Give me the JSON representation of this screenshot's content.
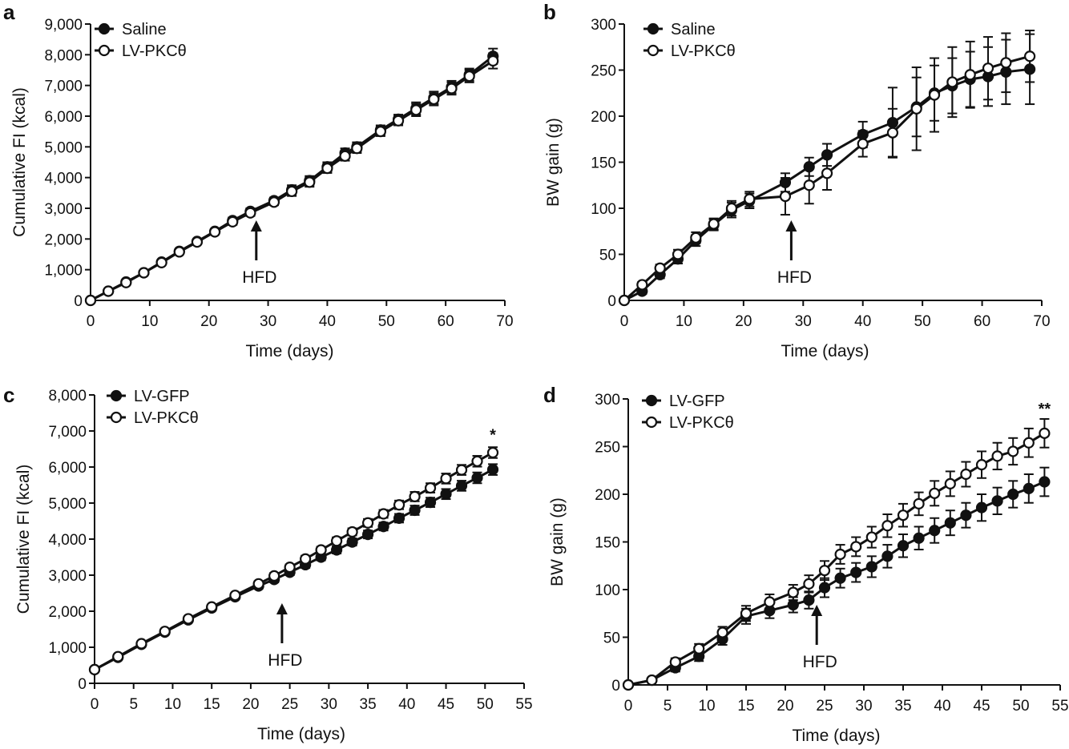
{
  "chart_data": [
    {
      "panel": "a",
      "type": "line",
      "xlabel": "Time (days)",
      "ylabel": "Cumulative FI (kcal)",
      "xlim": [
        0,
        70
      ],
      "ylim": [
        0,
        9000
      ],
      "xticks": [
        0,
        10,
        20,
        30,
        40,
        50,
        60,
        70
      ],
      "yticks": [
        0,
        1000,
        2000,
        3000,
        4000,
        5000,
        6000,
        7000,
        8000,
        9000
      ],
      "ytick_labels": [
        "0",
        "1,000",
        "2,000",
        "3,000",
        "4,000",
        "5,000",
        "6,000",
        "7,000",
        "8,000",
        "9,000"
      ],
      "annotation": {
        "text": "HFD",
        "x": 28
      },
      "significance": "",
      "legend_position": "top-left",
      "series": [
        {
          "name": "Saline",
          "marker": "filled",
          "x": [
            0,
            3,
            6,
            9,
            12,
            15,
            18,
            21,
            24,
            27,
            31,
            34,
            37,
            40,
            43,
            45,
            49,
            52,
            55,
            58,
            61,
            64,
            68
          ],
          "y": [
            0,
            300,
            600,
            900,
            1250,
            1600,
            1920,
            2250,
            2600,
            2900,
            3250,
            3600,
            3900,
            4350,
            4800,
            5000,
            5550,
            5900,
            6250,
            6600,
            6950,
            7350,
            7950
          ],
          "err": [
            0,
            0,
            0,
            0,
            0,
            0,
            0,
            0,
            100,
            100,
            100,
            150,
            150,
            150,
            150,
            150,
            150,
            150,
            200,
            200,
            200,
            200,
            250
          ]
        },
        {
          "name": "LV-PKCθ",
          "marker": "open",
          "x": [
            0,
            3,
            6,
            9,
            12,
            15,
            18,
            21,
            24,
            27,
            31,
            34,
            37,
            40,
            43,
            45,
            49,
            52,
            55,
            58,
            61,
            64,
            68
          ],
          "y": [
            0,
            300,
            580,
            900,
            1230,
            1580,
            1900,
            2230,
            2560,
            2850,
            3200,
            3550,
            3850,
            4300,
            4700,
            4950,
            5500,
            5850,
            6200,
            6550,
            6900,
            7300,
            7800
          ],
          "err": [
            0,
            0,
            0,
            0,
            0,
            0,
            0,
            0,
            100,
            100,
            100,
            150,
            150,
            150,
            150,
            150,
            150,
            150,
            200,
            200,
            200,
            200,
            250
          ]
        }
      ]
    },
    {
      "panel": "b",
      "type": "line",
      "xlabel": "Time (days)",
      "ylabel": "BW gain (g)",
      "xlim": [
        0,
        70
      ],
      "ylim": [
        0,
        300
      ],
      "xticks": [
        0,
        10,
        20,
        30,
        40,
        50,
        60,
        70
      ],
      "yticks": [
        0,
        50,
        100,
        150,
        200,
        250,
        300
      ],
      "ytick_labels": [
        "0",
        "50",
        "100",
        "150",
        "200",
        "250",
        "300"
      ],
      "annotation": {
        "text": "HFD",
        "x": 28
      },
      "significance": "",
      "legend_position": "top-left",
      "series": [
        {
          "name": "Saline",
          "marker": "filled",
          "x": [
            0,
            3,
            6,
            9,
            12,
            15,
            18,
            21,
            27,
            31,
            34,
            40,
            45,
            49,
            52,
            55,
            58,
            61,
            64,
            68
          ],
          "y": [
            0,
            10,
            28,
            45,
            65,
            82,
            98,
            108,
            128,
            145,
            158,
            180,
            193,
            210,
            225,
            233,
            240,
            243,
            248,
            251
          ],
          "err": [
            0,
            3,
            4,
            5,
            6,
            6,
            8,
            8,
            10,
            10,
            12,
            14,
            38,
            32,
            30,
            30,
            30,
            32,
            35,
            38
          ]
        },
        {
          "name": "LV-PKCθ",
          "marker": "open",
          "x": [
            0,
            3,
            6,
            9,
            12,
            15,
            18,
            21,
            27,
            31,
            34,
            40,
            45,
            49,
            52,
            55,
            58,
            61,
            64,
            68
          ],
          "y": [
            0,
            17,
            35,
            50,
            68,
            83,
            100,
            110,
            113,
            125,
            138,
            170,
            182,
            208,
            223,
            237,
            245,
            252,
            258,
            265
          ],
          "err": [
            0,
            3,
            4,
            5,
            6,
            6,
            8,
            8,
            20,
            20,
            18,
            14,
            26,
            45,
            40,
            38,
            36,
            34,
            32,
            28
          ]
        }
      ]
    },
    {
      "panel": "c",
      "type": "line",
      "xlabel": "Time (days)",
      "ylabel": "Cumulative FI (kcal)",
      "xlim": [
        0,
        55
      ],
      "ylim": [
        0,
        8000
      ],
      "xticks": [
        0,
        5,
        10,
        15,
        20,
        25,
        30,
        35,
        40,
        45,
        50,
        55
      ],
      "yticks": [
        0,
        1000,
        2000,
        3000,
        4000,
        5000,
        6000,
        7000,
        8000
      ],
      "ytick_labels": [
        "0",
        "1,000",
        "2,000",
        "3,000",
        "4,000",
        "5,000",
        "6,000",
        "7,000",
        "8,000"
      ],
      "annotation": {
        "text": "HFD",
        "x": 24
      },
      "significance": {
        "text": "*",
        "x": 51,
        "y": 6750
      },
      "legend_position": "top-left",
      "series": [
        {
          "name": "LV-GFP",
          "marker": "filled",
          "x": [
            0,
            3,
            6,
            9,
            12,
            15,
            18,
            21,
            23,
            25,
            27,
            29,
            31,
            33,
            35,
            37,
            39,
            41,
            43,
            45,
            47,
            49,
            51
          ],
          "y": [
            380,
            720,
            1080,
            1420,
            1760,
            2090,
            2400,
            2700,
            2880,
            3080,
            3290,
            3500,
            3700,
            3920,
            4130,
            4350,
            4580,
            4800,
            5020,
            5250,
            5480,
            5700,
            5930
          ],
          "err": [
            0,
            40,
            40,
            50,
            50,
            60,
            60,
            70,
            80,
            80,
            90,
            90,
            100,
            100,
            110,
            110,
            120,
            130,
            130,
            140,
            140,
            150,
            150
          ]
        },
        {
          "name": "LV-PKCθ",
          "marker": "open",
          "x": [
            0,
            3,
            6,
            9,
            12,
            15,
            18,
            21,
            23,
            25,
            27,
            29,
            31,
            33,
            35,
            37,
            39,
            41,
            43,
            45,
            47,
            49,
            51
          ],
          "y": [
            380,
            740,
            1100,
            1440,
            1790,
            2120,
            2440,
            2760,
            2980,
            3220,
            3450,
            3700,
            3950,
            4200,
            4450,
            4700,
            4950,
            5180,
            5420,
            5680,
            5920,
            6160,
            6400
          ],
          "err": [
            0,
            40,
            40,
            50,
            50,
            60,
            60,
            70,
            80,
            80,
            90,
            90,
            100,
            100,
            110,
            110,
            120,
            130,
            130,
            140,
            140,
            150,
            150
          ]
        }
      ]
    },
    {
      "panel": "d",
      "type": "line",
      "xlabel": "Time (days)",
      "ylabel": "BW gain (g)",
      "xlim": [
        0,
        55
      ],
      "ylim": [
        0,
        300
      ],
      "xticks": [
        0,
        5,
        10,
        15,
        20,
        25,
        30,
        35,
        40,
        45,
        50,
        55
      ],
      "yticks": [
        0,
        50,
        100,
        150,
        200,
        250,
        300
      ],
      "ytick_labels": [
        "0",
        "50",
        "100",
        "150",
        "200",
        "250",
        "300"
      ],
      "annotation": {
        "text": "HFD",
        "x": 24
      },
      "significance": {
        "text": "**",
        "x": 53,
        "y": 284
      },
      "legend_position": "top-left",
      "series": [
        {
          "name": "LV-GFP",
          "marker": "filled",
          "x": [
            0,
            3,
            6,
            9,
            12,
            15,
            18,
            21,
            23,
            25,
            27,
            29,
            31,
            33,
            35,
            37,
            39,
            41,
            43,
            45,
            47,
            49,
            51,
            53
          ],
          "y": [
            0,
            5,
            18,
            30,
            48,
            72,
            78,
            84,
            89,
            102,
            112,
            118,
            124,
            135,
            146,
            154,
            162,
            170,
            178,
            186,
            193,
            200,
            206,
            213
          ],
          "err": [
            0,
            2,
            4,
            5,
            6,
            8,
            8,
            8,
            9,
            10,
            10,
            10,
            11,
            12,
            12,
            12,
            13,
            13,
            13,
            14,
            14,
            14,
            15,
            15
          ]
        },
        {
          "name": "LV-PKCθ",
          "marker": "open",
          "x": [
            0,
            3,
            6,
            9,
            12,
            15,
            18,
            21,
            23,
            25,
            27,
            29,
            31,
            33,
            35,
            37,
            39,
            41,
            43,
            45,
            47,
            49,
            51,
            53
          ],
          "y": [
            0,
            5,
            24,
            38,
            55,
            75,
            87,
            97,
            106,
            120,
            137,
            145,
            155,
            167,
            178,
            190,
            201,
            211,
            221,
            231,
            240,
            245,
            254,
            264
          ],
          "err": [
            0,
            2,
            4,
            5,
            6,
            8,
            8,
            8,
            9,
            10,
            10,
            10,
            11,
            12,
            12,
            12,
            13,
            13,
            13,
            14,
            14,
            14,
            15,
            15
          ]
        }
      ]
    }
  ]
}
